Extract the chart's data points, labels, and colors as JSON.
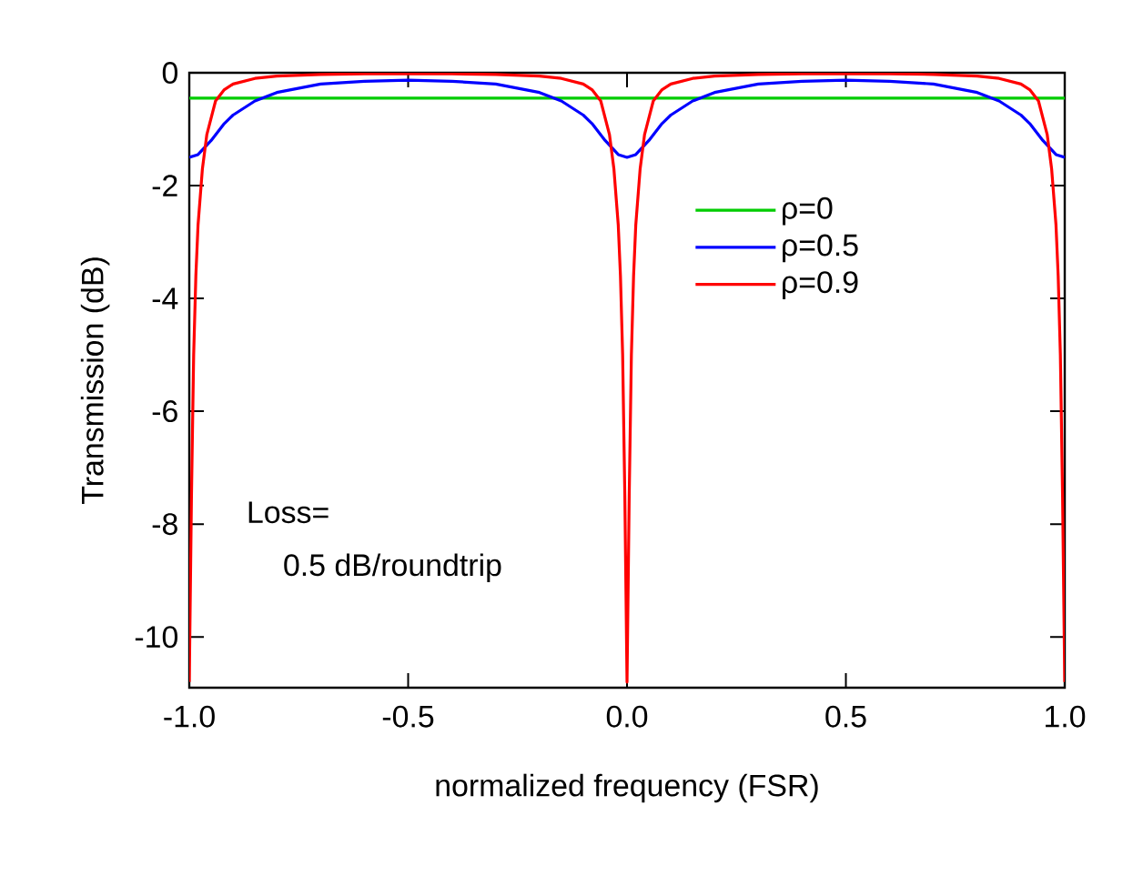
{
  "chart_data": {
    "type": "line",
    "xlabel": "normalized frequency (FSR)",
    "ylabel": "Transmission (dB)",
    "xlim": [
      -1,
      1
    ],
    "ylim": [
      -10.9,
      0
    ],
    "xticks": [
      {
        "value": -1,
        "label": "-1.0"
      },
      {
        "value": -0.5,
        "label": "-0.5"
      },
      {
        "value": 0,
        "label": "0.0"
      },
      {
        "value": 0.5,
        "label": "0.5"
      },
      {
        "value": 1,
        "label": "1.0"
      }
    ],
    "yticks": [
      0,
      -2,
      -4,
      -6,
      -8,
      -10
    ],
    "legend": "right",
    "annotations": [
      "Loss=",
      "0.5 dB/roundtrip"
    ],
    "series": [
      {
        "name": "ρ=0",
        "color": "#00cc00",
        "x": [
          -1,
          1
        ],
        "values": [
          -0.45,
          -0.45
        ]
      },
      {
        "name": "ρ=0.5",
        "color": "#0000ff",
        "x": [
          -1,
          -0.98,
          -0.95,
          -0.92,
          -0.9,
          -0.85,
          -0.8,
          -0.7,
          -0.6,
          -0.5,
          -0.4,
          -0.3,
          -0.2,
          -0.15,
          -0.1,
          -0.08,
          -0.05,
          -0.02,
          0,
          0.02,
          0.05,
          0.08,
          0.1,
          0.15,
          0.2,
          0.3,
          0.4,
          0.5,
          0.6,
          0.7,
          0.8,
          0.85,
          0.9,
          0.92,
          0.95,
          0.98,
          1
        ],
        "values": [
          -1.5,
          -1.45,
          -1.2,
          -0.9,
          -0.75,
          -0.5,
          -0.35,
          -0.2,
          -0.15,
          -0.13,
          -0.15,
          -0.2,
          -0.35,
          -0.5,
          -0.75,
          -0.9,
          -1.2,
          -1.45,
          -1.5,
          -1.45,
          -1.2,
          -0.9,
          -0.75,
          -0.5,
          -0.35,
          -0.2,
          -0.15,
          -0.13,
          -0.15,
          -0.2,
          -0.35,
          -0.5,
          -0.75,
          -0.9,
          -1.2,
          -1.45,
          -1.5
        ]
      },
      {
        "name": "ρ=0.9",
        "color": "#ff0000",
        "x": [
          -1,
          -0.995,
          -0.99,
          -0.985,
          -0.98,
          -0.97,
          -0.96,
          -0.94,
          -0.92,
          -0.9,
          -0.85,
          -0.8,
          -0.7,
          -0.6,
          -0.5,
          -0.4,
          -0.3,
          -0.2,
          -0.15,
          -0.1,
          -0.08,
          -0.06,
          -0.04,
          -0.03,
          -0.02,
          -0.015,
          -0.01,
          -0.005,
          0,
          0.005,
          0.01,
          0.015,
          0.02,
          0.03,
          0.04,
          0.06,
          0.08,
          0.1,
          0.15,
          0.2,
          0.3,
          0.4,
          0.5,
          0.6,
          0.7,
          0.8,
          0.85,
          0.9,
          0.92,
          0.94,
          0.96,
          0.97,
          0.98,
          0.985,
          0.99,
          0.995,
          1
        ],
        "values": [
          -10.8,
          -7.5,
          -5.0,
          -3.6,
          -2.7,
          -1.7,
          -1.1,
          -0.5,
          -0.3,
          -0.2,
          -0.1,
          -0.06,
          -0.03,
          -0.02,
          -0.02,
          -0.02,
          -0.03,
          -0.06,
          -0.1,
          -0.2,
          -0.3,
          -0.5,
          -1.1,
          -1.7,
          -2.7,
          -3.6,
          -5.0,
          -7.5,
          -10.8,
          -7.5,
          -5.0,
          -3.6,
          -2.7,
          -1.7,
          -1.1,
          -0.5,
          -0.3,
          -0.2,
          -0.1,
          -0.06,
          -0.03,
          -0.02,
          -0.02,
          -0.02,
          -0.03,
          -0.06,
          -0.1,
          -0.2,
          -0.3,
          -0.5,
          -1.1,
          -1.7,
          -2.7,
          -3.6,
          -5.0,
          -7.5,
          -10.8
        ]
      }
    ]
  }
}
